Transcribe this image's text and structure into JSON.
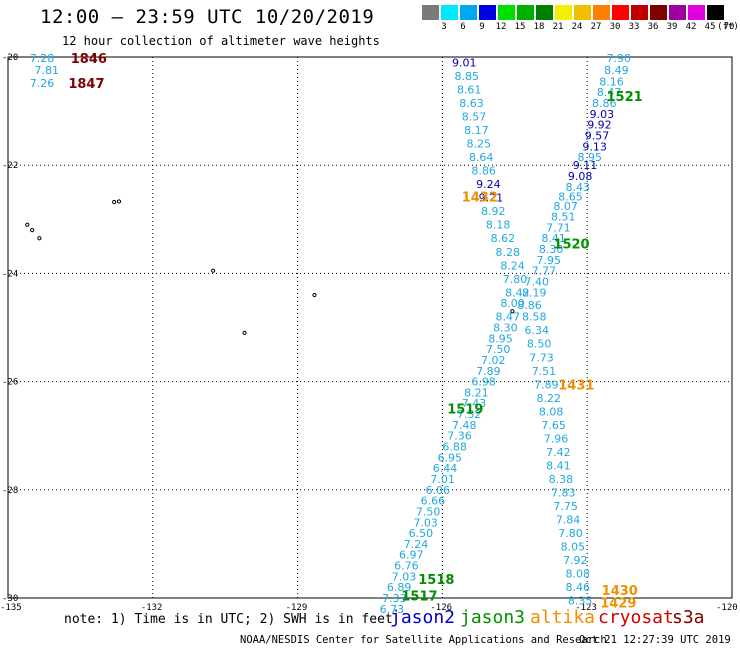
{
  "header": {
    "title": "12:00 — 23:59 UTC 10/20/2019",
    "subtitle": "12 hour collection of altimeter wave heights"
  },
  "legend": {
    "unit": "(ft)",
    "bins": [
      {
        "label": "3",
        "color": "#7a7a7a"
      },
      {
        "label": "6",
        "color": "#00e8ff"
      },
      {
        "label": "9",
        "color": "#00a8f0"
      },
      {
        "label": "12",
        "color": "#0000e0"
      },
      {
        "label": "15",
        "color": "#00e000"
      },
      {
        "label": "18",
        "color": "#00b000"
      },
      {
        "label": "21",
        "color": "#008000"
      },
      {
        "label": "24",
        "color": "#f0f000"
      },
      {
        "label": "27",
        "color": "#f0c000"
      },
      {
        "label": "30",
        "color": "#ff8000"
      },
      {
        "label": "33",
        "color": "#ff0000"
      },
      {
        "label": "36",
        "color": "#c00000"
      },
      {
        "label": "39",
        "color": "#800000"
      },
      {
        "label": "42",
        "color": "#a000a0"
      },
      {
        "label": "45",
        "color": "#e000e0"
      },
      {
        "label": "70",
        "color": "#000000"
      }
    ]
  },
  "axes": {
    "lat_ticks": [
      "-20",
      "-22",
      "-24",
      "-26",
      "-28",
      "-30"
    ],
    "lon_ticks": [
      "-135",
      "-132",
      "-129",
      "-126",
      "-123",
      "-120"
    ]
  },
  "colors": {
    "jason2": "#0000c8",
    "jason3": "#009000",
    "altika": "#f09000",
    "cryosat": "#d00000",
    "s3a": "#800000",
    "swh_light": "#20a8e0",
    "swh_dark": "#0000b0"
  },
  "pass_labels": [
    {
      "text": "1846",
      "lat": -20.02,
      "lon": -133.7,
      "sat": "s3a"
    },
    {
      "text": "1847",
      "lat": -20.48,
      "lon": -133.75,
      "sat": "s3a"
    },
    {
      "text": "1521",
      "lat": -20.72,
      "lon": -122.6,
      "sat": "jason3"
    },
    {
      "text": "1432",
      "lat": -22.58,
      "lon": -125.6,
      "sat": "altika"
    },
    {
      "text": "1520",
      "lat": -23.45,
      "lon": -123.7,
      "sat": "jason3"
    },
    {
      "text": "1431",
      "lat": -26.05,
      "lon": -123.6,
      "sat": "altika"
    },
    {
      "text": "1519",
      "lat": -26.5,
      "lon": -125.9,
      "sat": "jason3"
    },
    {
      "text": "1518",
      "lat": -29.65,
      "lon": -126.5,
      "sat": "jason3"
    },
    {
      "text": "1517",
      "lat": -29.95,
      "lon": -126.85,
      "sat": "jason3"
    },
    {
      "text": "1430",
      "lat": -29.85,
      "lon": -122.7,
      "sat": "altika"
    },
    {
      "text": "1429",
      "lat": -30.08,
      "lon": -122.73,
      "sat": "altika"
    }
  ],
  "swh_points": [
    {
      "v": "7.28",
      "lat": -20.02,
      "lon": -134.55,
      "c": "light"
    },
    {
      "v": "7.81",
      "lat": -20.24,
      "lon": -134.45,
      "c": "light"
    },
    {
      "v": "7.26",
      "lat": -20.48,
      "lon": -134.55,
      "c": "light"
    },
    {
      "v": "9.01",
      "lat": -20.1,
      "lon": -125.8,
      "c": "dark"
    },
    {
      "v": "8.85",
      "lat": -20.35,
      "lon": -125.75,
      "c": "light"
    },
    {
      "v": "8.61",
      "lat": -20.6,
      "lon": -125.7,
      "c": "light"
    },
    {
      "v": "8.63",
      "lat": -20.85,
      "lon": -125.65,
      "c": "light"
    },
    {
      "v": "8.57",
      "lat": -21.1,
      "lon": -125.6,
      "c": "light"
    },
    {
      "v": "8.17",
      "lat": -21.35,
      "lon": -125.55,
      "c": "light"
    },
    {
      "v": "8.25",
      "lat": -21.6,
      "lon": -125.5,
      "c": "light"
    },
    {
      "v": "8.64",
      "lat": -21.85,
      "lon": -125.45,
      "c": "light"
    },
    {
      "v": "8.86",
      "lat": -22.1,
      "lon": -125.4,
      "c": "light"
    },
    {
      "v": "9.24",
      "lat": -22.35,
      "lon": -125.3,
      "c": "dark"
    },
    {
      "v": "9.21",
      "lat": -22.6,
      "lon": -125.25,
      "c": "dark"
    },
    {
      "v": "8.92",
      "lat": -22.85,
      "lon": -125.2,
      "c": "light"
    },
    {
      "v": "8.18",
      "lat": -23.1,
      "lon": -125.1,
      "c": "light"
    },
    {
      "v": "8.62",
      "lat": -23.35,
      "lon": -125.0,
      "c": "light"
    },
    {
      "v": "8.28",
      "lat": -23.6,
      "lon": -124.9,
      "c": "light"
    },
    {
      "v": "8.24",
      "lat": -23.85,
      "lon": -124.8,
      "c": "light"
    },
    {
      "v": "7.80",
      "lat": -24.1,
      "lon": -124.75,
      "c": "light"
    },
    {
      "v": "8.42",
      "lat": -24.35,
      "lon": -124.7,
      "c": "light"
    },
    {
      "v": "8.00",
      "lat": -24.55,
      "lon": -124.8,
      "c": "light"
    },
    {
      "v": "8.47",
      "lat": -24.8,
      "lon": -124.9,
      "c": "light"
    },
    {
      "v": "8.30",
      "lat": -25.0,
      "lon": -124.95,
      "c": "light"
    },
    {
      "v": "8.95",
      "lat": -25.2,
      "lon": -125.05,
      "c": "light"
    },
    {
      "v": "7.50",
      "lat": -25.4,
      "lon": -125.1,
      "c": "light"
    },
    {
      "v": "7.02",
      "lat": -25.6,
      "lon": -125.2,
      "c": "light"
    },
    {
      "v": "7.89",
      "lat": -25.8,
      "lon": -125.3,
      "c": "light"
    },
    {
      "v": "6.98",
      "lat": -26.0,
      "lon": -125.4,
      "c": "light"
    },
    {
      "v": "8.21",
      "lat": -26.2,
      "lon": -125.55,
      "c": "light"
    },
    {
      "v": "7.43",
      "lat": -26.4,
      "lon": -125.6,
      "c": "light"
    },
    {
      "v": "7.32",
      "lat": -26.6,
      "lon": -125.7,
      "c": "light"
    },
    {
      "v": "7.48",
      "lat": -26.8,
      "lon": -125.8,
      "c": "light"
    },
    {
      "v": "7.36",
      "lat": -27.0,
      "lon": -125.9,
      "c": "light"
    },
    {
      "v": "6.88",
      "lat": -27.2,
      "lon": -126.0,
      "c": "light"
    },
    {
      "v": "6.95",
      "lat": -27.4,
      "lon": -126.1,
      "c": "light"
    },
    {
      "v": "6.44",
      "lat": -27.6,
      "lon": -126.2,
      "c": "light"
    },
    {
      "v": "7.01",
      "lat": -27.8,
      "lon": -126.25,
      "c": "light"
    },
    {
      "v": "6.06",
      "lat": -28.0,
      "lon": -126.35,
      "c": "light"
    },
    {
      "v": "6.66",
      "lat": -28.2,
      "lon": -126.45,
      "c": "light"
    },
    {
      "v": "7.50",
      "lat": -28.4,
      "lon": -126.55,
      "c": "light"
    },
    {
      "v": "7.03",
      "lat": -28.6,
      "lon": -126.6,
      "c": "light"
    },
    {
      "v": "6.50",
      "lat": -28.8,
      "lon": -126.7,
      "c": "light"
    },
    {
      "v": "7.24",
      "lat": -29.0,
      "lon": -126.8,
      "c": "light"
    },
    {
      "v": "6.97",
      "lat": -29.2,
      "lon": -126.9,
      "c": "light"
    },
    {
      "v": "6.76",
      "lat": -29.4,
      "lon": -127.0,
      "c": "light"
    },
    {
      "v": "7.03",
      "lat": -29.6,
      "lon": -127.05,
      "c": "light"
    },
    {
      "v": "6.89",
      "lat": -29.8,
      "lon": -127.15,
      "c": "light"
    },
    {
      "v": "7.33",
      "lat": -30.0,
      "lon": -127.25,
      "c": "light"
    },
    {
      "v": "6.73",
      "lat": -30.2,
      "lon": -127.3,
      "c": "light"
    },
    {
      "v": "7.90",
      "lat": -20.02,
      "lon": -122.6,
      "c": "light"
    },
    {
      "v": "8.49",
      "lat": -20.24,
      "lon": -122.65,
      "c": "light"
    },
    {
      "v": "8.16",
      "lat": -20.45,
      "lon": -122.75,
      "c": "light"
    },
    {
      "v": "8.47",
      "lat": -20.65,
      "lon": -122.8,
      "c": "light"
    },
    {
      "v": "8.86",
      "lat": -20.85,
      "lon": -122.9,
      "c": "light"
    },
    {
      "v": "9.03",
      "lat": -21.05,
      "lon": -122.95,
      "c": "dark"
    },
    {
      "v": "9.92",
      "lat": -21.25,
      "lon": -123.0,
      "c": "dark"
    },
    {
      "v": "9.57",
      "lat": -21.45,
      "lon": -123.05,
      "c": "dark"
    },
    {
      "v": "9.13",
      "lat": -21.65,
      "lon": -123.1,
      "c": "dark"
    },
    {
      "v": "8.95",
      "lat": -21.85,
      "lon": -123.2,
      "c": "light"
    },
    {
      "v": "9.11",
      "lat": -22.0,
      "lon": -123.3,
      "c": "dark"
    },
    {
      "v": "9.08",
      "lat": -22.2,
      "lon": -123.4,
      "c": "dark"
    },
    {
      "v": "8.43",
      "lat": -22.4,
      "lon": -123.45,
      "c": "light"
    },
    {
      "v": "8.65",
      "lat": -22.58,
      "lon": -123.6,
      "c": "light"
    },
    {
      "v": "8.07",
      "lat": -22.75,
      "lon": -123.7,
      "c": "light"
    },
    {
      "v": "8.51",
      "lat": -22.95,
      "lon": -123.75,
      "c": "light"
    },
    {
      "v": "7.71",
      "lat": -23.15,
      "lon": -123.85,
      "c": "light"
    },
    {
      "v": "8.41",
      "lat": -23.35,
      "lon": -123.95,
      "c": "light"
    },
    {
      "v": "8.30",
      "lat": -23.55,
      "lon": -124.0,
      "c": "light"
    },
    {
      "v": "7.95",
      "lat": -23.75,
      "lon": -124.05,
      "c": "light"
    },
    {
      "v": "7.77",
      "lat": -23.95,
      "lon": -124.15,
      "c": "light"
    },
    {
      "v": "7.40",
      "lat": -24.15,
      "lon": -124.3,
      "c": "light"
    },
    {
      "v": "8.19",
      "lat": -24.35,
      "lon": -124.35,
      "c": "light"
    },
    {
      "v": "8.86",
      "lat": -24.58,
      "lon": -124.45,
      "c": "light"
    },
    {
      "v": "8.58",
      "lat": -24.8,
      "lon": -124.35,
      "c": "light"
    },
    {
      "v": "6.34",
      "lat": -25.05,
      "lon": -124.3,
      "c": "light"
    },
    {
      "v": "8.50",
      "lat": -25.3,
      "lon": -124.25,
      "c": "light"
    },
    {
      "v": "7.73",
      "lat": -25.55,
      "lon": -124.2,
      "c": "light"
    },
    {
      "v": "7.51",
      "lat": -25.8,
      "lon": -124.15,
      "c": "light"
    },
    {
      "v": "7.89",
      "lat": -26.05,
      "lon": -124.1,
      "c": "light"
    },
    {
      "v": "8.22",
      "lat": -26.3,
      "lon": -124.05,
      "c": "light"
    },
    {
      "v": "8.08",
      "lat": -26.55,
      "lon": -124.0,
      "c": "light"
    },
    {
      "v": "7.65",
      "lat": -26.8,
      "lon": -123.95,
      "c": "light"
    },
    {
      "v": "7.96",
      "lat": -27.05,
      "lon": -123.9,
      "c": "light"
    },
    {
      "v": "7.42",
      "lat": -27.3,
      "lon": -123.85,
      "c": "light"
    },
    {
      "v": "8.41",
      "lat": -27.55,
      "lon": -123.85,
      "c": "light"
    },
    {
      "v": "8.38",
      "lat": -27.8,
      "lon": -123.8,
      "c": "light"
    },
    {
      "v": "7.83",
      "lat": -28.05,
      "lon": -123.75,
      "c": "light"
    },
    {
      "v": "7.75",
      "lat": -28.3,
      "lon": -123.7,
      "c": "light"
    },
    {
      "v": "7.84",
      "lat": -28.55,
      "lon": -123.65,
      "c": "light"
    },
    {
      "v": "7.80",
      "lat": -28.8,
      "lon": -123.6,
      "c": "light"
    },
    {
      "v": "8.05",
      "lat": -29.05,
      "lon": -123.55,
      "c": "light"
    },
    {
      "v": "7.92",
      "lat": -29.3,
      "lon": -123.5,
      "c": "light"
    },
    {
      "v": "8.08",
      "lat": -29.55,
      "lon": -123.45,
      "c": "light"
    },
    {
      "v": "8.46",
      "lat": -29.8,
      "lon": -123.45,
      "c": "light"
    },
    {
      "v": "8.35",
      "lat": -30.05,
      "lon": -123.4,
      "c": "light"
    }
  ],
  "islands": [
    {
      "lat": -22.68,
      "lon": -132.8
    },
    {
      "lat": -22.67,
      "lon": -132.7
    },
    {
      "lat": -23.1,
      "lon": -134.6
    },
    {
      "lat": -23.2,
      "lon": -134.5
    },
    {
      "lat": -23.35,
      "lon": -134.35
    },
    {
      "lat": -23.95,
      "lon": -130.75
    },
    {
      "lat": -24.4,
      "lon": -128.65
    },
    {
      "lat": -25.1,
      "lon": -130.1
    },
    {
      "lat": -24.7,
      "lon": -124.55
    }
  ],
  "footer": {
    "note": "note:  1) Time is in UTC; 2) SWH is in feet",
    "sat_names": [
      "jason2",
      "jason3",
      "altika",
      "cryosat",
      "s3a"
    ],
    "credit": "NOAA/NESDIS Center for Satellite Applications and Research",
    "timestamp": "Oct 21 12:27:39 UTC 2019"
  }
}
